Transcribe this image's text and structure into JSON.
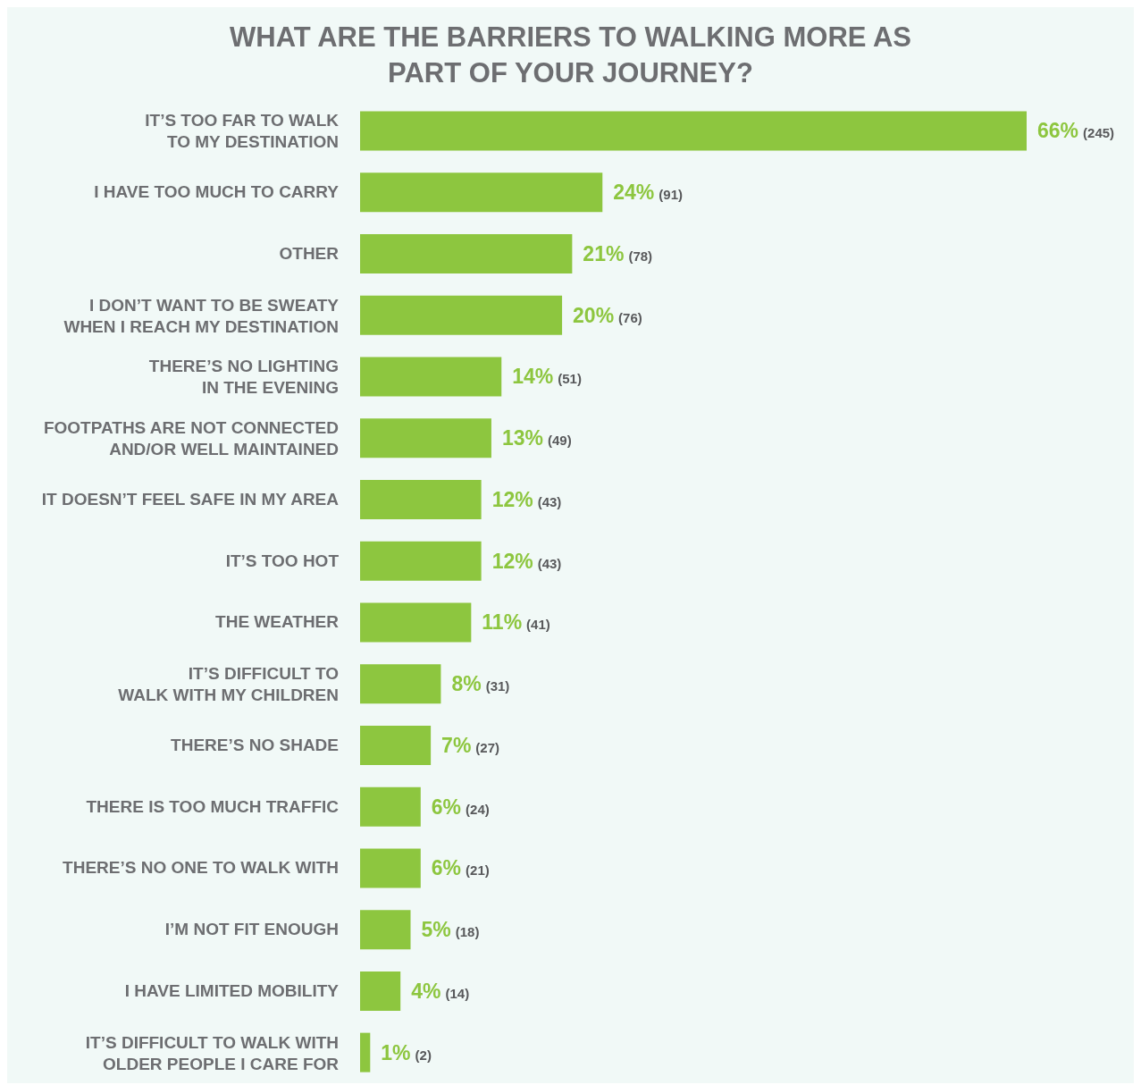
{
  "chart_data": {
    "type": "bar",
    "orientation": "horizontal",
    "title": "WHAT ARE THE BARRIERS TO WALKING MORE AS PART OF YOUR JOURNEY?",
    "categories": [
      "IT’S TOO FAR TO WALK TO MY DESTINATION",
      "I HAVE TOO MUCH TO CARRY",
      "OTHER",
      "I DON’T WANT TO BE SWEATY WHEN I REACH MY DESTINATION",
      "THERE’S NO LIGHTING IN THE EVENING",
      "FOOTPATHS ARE NOT CONNECTED AND/OR WELL MAINTAINED",
      "IT DOESN’T FEEL SAFE IN MY AREA",
      "IT’S TOO HOT",
      "THE WEATHER",
      "IT’S DIFFICULT TO WALK WITH MY CHILDREN",
      "THERE’S NO SHADE",
      "THERE IS TOO MUCH TRAFFIC",
      "THERE’S NO ONE TO WALK WITH",
      "I’M NOT FIT ENOUGH",
      "I HAVE LIMITED MOBILITY",
      "IT’S DIFFICULT TO WALK WITH OLDER PEOPLE I CARE FOR"
    ],
    "values": [
      66,
      24,
      21,
      20,
      14,
      13,
      12,
      12,
      11,
      8,
      7,
      6,
      6,
      5,
      4,
      1
    ],
    "value_labels": [
      "66% (245)",
      "24% (91)",
      "21% (78)",
      "20% (76)",
      "14% (51)",
      "13% (49)",
      "12% (43)",
      "12% (43)",
      "11% (41)",
      "8% (31)",
      "7% (27)",
      "6% (24)",
      "6% (21)",
      "5% (18)",
      "4% (14)",
      "1% (2)"
    ],
    "color": "#8dc63f"
  }
}
